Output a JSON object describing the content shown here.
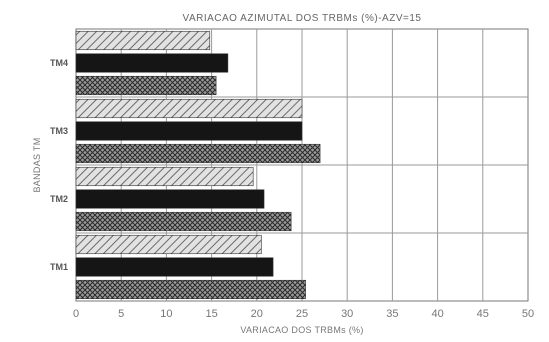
{
  "chart_data": {
    "type": "bar",
    "orientation": "horizontal",
    "title": "VARIACAO AZIMUTAL DOS TRBMs (%)-AZV=15",
    "xlabel": "VARIACAO DOS TRBMs (%)",
    "ylabel": "BANDAS TM",
    "xlim": [
      0,
      50
    ],
    "xticks": [
      "0",
      "5",
      "10",
      "15",
      "20",
      "25",
      "30",
      "35",
      "40",
      "45",
      "50"
    ],
    "grid": true,
    "categories": [
      "TM4",
      "TM3",
      "TM2",
      "TM1"
    ],
    "series": [
      {
        "values": [
          14.8,
          25.0,
          19.6,
          20.5
        ],
        "pattern": "diagonal-light"
      },
      {
        "values": [
          16.8,
          25.0,
          20.8,
          21.8
        ],
        "pattern": "solid-dark"
      },
      {
        "values": [
          15.5,
          27.0,
          23.8,
          25.4
        ],
        "pattern": "crosshatch"
      }
    ]
  }
}
